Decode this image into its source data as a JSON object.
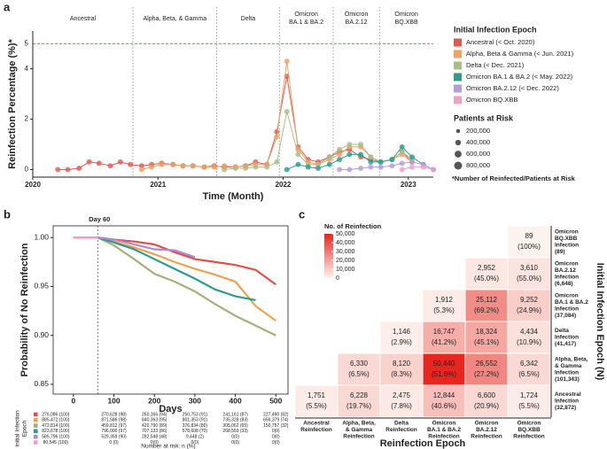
{
  "chart_data": [
    {
      "type": "bubble-line",
      "panel": "a",
      "ylabel": "Reinfection Percentage (%)*",
      "xlabel": "Time (Month)",
      "x": [
        2020.2,
        2020.28,
        2020.37,
        2020.45,
        2020.53,
        2020.62,
        2020.7,
        2020.78,
        2020.87,
        2020.95,
        2021.03,
        2021.12,
        2021.2,
        2021.28,
        2021.37,
        2021.45,
        2021.53,
        2021.62,
        2021.7,
        2021.78,
        2021.87,
        2021.95,
        2022.03,
        2022.12,
        2022.2,
        2022.28,
        2022.37,
        2022.45,
        2022.53,
        2022.62,
        2022.7,
        2022.78,
        2022.87,
        2022.95,
        2023.03,
        2023.12,
        2023.2
      ],
      "xlim": [
        2020,
        2023.2
      ],
      "xticks": [
        2020,
        2021,
        2022,
        2023
      ],
      "ylim": [
        -0.3,
        5.5
      ],
      "yticks": [
        0,
        2,
        4
      ],
      "hline": 5,
      "hline_color": "#e8251f",
      "epoch_boundaries": [
        2020.8,
        2021.47,
        2021.97,
        2022.4,
        2022.77
      ],
      "epoch_labels": [
        [
          "Ancestral"
        ],
        [
          "Alpha, Beta, & Gamma"
        ],
        [
          "Delta"
        ],
        [
          "Omicron",
          "BA.1 & BA.2"
        ],
        [
          "Omicron",
          "BA.2.12"
        ],
        [
          "Omicron",
          "BQ.XBB"
        ]
      ],
      "legend_title": "Initial Infection Epoch",
      "size_legend_title": "Patients at Risk",
      "size_legend": [
        {
          "value": 200000,
          "label": "200,000"
        },
        {
          "value": 400000,
          "label": "400,000"
        },
        {
          "value": 600000,
          "label": "600,000"
        },
        {
          "value": 800000,
          "label": "800,000"
        }
      ],
      "footnote": "*Number of Reinfected/Patients at Risk",
      "series": [
        {
          "name": "Ancestral (< Oct. 2020)",
          "color": "#e05a55",
          "values": [
            0,
            0,
            0.05,
            0.3,
            0.25,
            0.15,
            0.3,
            0.2,
            0.15,
            0.2,
            0.25,
            0.2,
            0.15,
            0.15,
            0.1,
            0.15,
            0.1,
            0.1,
            0.15,
            0.3,
            0.2,
            1.5,
            3.7,
            0.9,
            0.4,
            0.3,
            0.5,
            0.7,
            0.8,
            0.5,
            0.4,
            0.3,
            0.4,
            0.7,
            0.3,
            null,
            null
          ]
        },
        {
          "name": "Alpha, Beta & Gamma (< Jun. 2021)",
          "color": "#f0a060",
          "values": [
            null,
            null,
            null,
            null,
            null,
            null,
            null,
            null,
            0,
            0.1,
            0.2,
            0.2,
            0.15,
            0.15,
            0.1,
            0.1,
            0.15,
            0.1,
            0.15,
            0.2,
            0.2,
            1.3,
            4.3,
            0.8,
            0.3,
            0.2,
            0.4,
            0.6,
            0.9,
            0.9,
            0.5,
            0.3,
            0.4,
            0.6,
            0.3,
            null,
            null
          ]
        },
        {
          "name": "Delta (< Dec. 2021)",
          "color": "#a8bf8a",
          "values": [
            null,
            null,
            null,
            null,
            null,
            null,
            null,
            null,
            null,
            null,
            null,
            null,
            null,
            null,
            null,
            null,
            0,
            0.05,
            0.05,
            0.1,
            0.1,
            0.3,
            2.3,
            0.6,
            0.2,
            0.2,
            0.5,
            0.8,
            1.0,
            1.0,
            0.5,
            0.3,
            0.4,
            0.7,
            0.4,
            null,
            null
          ]
        },
        {
          "name": "Omicron BA.1 & BA.2 (< May. 2022)",
          "color": "#2a9d8f",
          "values": [
            null,
            null,
            null,
            null,
            null,
            null,
            null,
            null,
            null,
            null,
            null,
            null,
            null,
            null,
            null,
            null,
            null,
            null,
            null,
            null,
            null,
            null,
            0,
            0.2,
            0.1,
            0.05,
            0.2,
            0.4,
            0.6,
            0.6,
            0.3,
            0.3,
            0.4,
            0.9,
            0.5,
            0.2,
            0
          ]
        },
        {
          "name": "Omicron BA.2.12 (< Dec. 2022)",
          "color": "#b39ddb",
          "values": [
            null,
            null,
            null,
            null,
            null,
            null,
            null,
            null,
            null,
            null,
            null,
            null,
            null,
            null,
            null,
            null,
            null,
            null,
            null,
            null,
            null,
            null,
            null,
            null,
            null,
            null,
            null,
            0,
            0,
            0.05,
            0.1,
            0.1,
            0.15,
            0.25,
            0.3,
            0.2,
            0
          ]
        },
        {
          "name": "Omicron BQ.XBB",
          "color": "#eaa3c4",
          "values": [
            null,
            null,
            null,
            null,
            null,
            null,
            null,
            null,
            null,
            null,
            null,
            null,
            null,
            null,
            null,
            null,
            null,
            null,
            null,
            null,
            null,
            null,
            null,
            null,
            null,
            null,
            null,
            null,
            null,
            null,
            null,
            null,
            null,
            0,
            0.1,
            0.1,
            0
          ]
        }
      ]
    },
    {
      "type": "survival",
      "panel": "b",
      "annotation": "Day 60",
      "vline": 60,
      "ylabel": "Probability of No Reinfection",
      "xlabel": "Days",
      "x": [
        0,
        60,
        100,
        150,
        200,
        250,
        300,
        350,
        400,
        450,
        500
      ],
      "xlim": [
        -50,
        530
      ],
      "xticks": [
        0,
        100,
        200,
        300,
        400,
        500
      ],
      "ylim": [
        0.84,
        1.012
      ],
      "yticks": [
        {
          "value": 0.85,
          "label": "0.85"
        },
        {
          "value": 0.9,
          "label": "0.90"
        },
        {
          "value": 0.95,
          "label": "0.95"
        },
        {
          "value": 1,
          "label": "1.00"
        }
      ],
      "risk_title": "Number at risk: n (%)",
      "risk_ylabel": [
        "Initial Infection",
        "Epoch"
      ],
      "series": [
        {
          "color": "#e0504a",
          "values": [
            1,
            1,
            0.998,
            0.996,
            0.993,
            0.985,
            0.978,
            0.975,
            0.972,
            0.967,
            0.952
          ],
          "at_risk": [
            "276,086 (100)",
            "270,628 (98)",
            "260,166 (94)",
            "250,753 (91)",
            "241,161 (87)",
            "227,490 (82)"
          ]
        },
        {
          "color": "#f0a050",
          "values": [
            1,
            1,
            0.996,
            0.99,
            0.983,
            0.975,
            0.968,
            0.962,
            0.955,
            0.93,
            0.915
          ],
          "at_risk": [
            "885,472 (100)",
            "871,586 (98)",
            "840,363 (95)",
            "801,353 (91)",
            "735,328 (83)",
            "659,379 (74)"
          ]
        },
        {
          "color": "#a5b07a",
          "values": [
            1,
            1,
            0.992,
            0.978,
            0.963,
            0.955,
            0.945,
            0.932,
            0.92,
            0.91,
            0.9
          ],
          "at_risk": [
            "472,814 (100)",
            "459,812 (97)",
            "420,790 (89)",
            "376,834 (80)",
            "305,062 (65)",
            "150,757 (32)"
          ]
        },
        {
          "color": "#2a9d8f",
          "values": [
            1,
            1,
            0.995,
            0.988,
            0.978,
            0.968,
            0.958,
            0.947,
            0.94,
            0.936,
            null
          ],
          "at_risk": [
            "823,678 (100)",
            "796,000 (97)",
            "707,133 (86)",
            "578,608 (70)",
            "268,559 (33)",
            "0(0)"
          ]
        },
        {
          "color": "#a98bd0",
          "values": [
            1,
            1,
            0.998,
            0.993,
            0.988,
            0.987,
            0.98,
            null,
            null,
            null,
            null
          ],
          "at_risk": [
            "585,796 (100)",
            "529,359 (90)",
            "282,548 (48)",
            "9,448 (2)",
            "0(0)",
            "0(0)"
          ]
        },
        {
          "color": "#f0a0c0",
          "values": [
            1,
            1,
            null,
            null,
            null,
            null,
            null,
            null,
            null,
            null,
            null
          ],
          "at_risk": [
            "80,545 (100)",
            "0 (0)",
            "0(0)",
            "0(0)",
            "0(0)",
            "0(0)"
          ]
        }
      ]
    },
    {
      "type": "heatmap",
      "panel": "c",
      "xlabel": "Reinfection Epoch",
      "ylabel": "Initial Infection Epoch (N)",
      "colorbar_title": "No. of Reinfection",
      "clim": [
        0,
        50000
      ],
      "cticks": [
        0,
        {
          "value": 10000,
          "label": "10,000"
        },
        {
          "value": 20000,
          "label": "20,000"
        },
        {
          "value": 30000,
          "label": "30,000"
        },
        {
          "value": 40000,
          "label": "40,000"
        },
        {
          "value": 50000,
          "label": "50,000"
        }
      ],
      "color_low": "#fdf3ee",
      "color_high": "#e8251f",
      "x_categories": [
        [
          "Ancestral",
          "Reinfection"
        ],
        [
          "Alpha, Beta,",
          "& Gamma",
          "Reinfection"
        ],
        [
          "Delta",
          "Reinfection"
        ],
        [
          "Omicron",
          "BA.1 & BA.2",
          "Reinfection"
        ],
        [
          "Omicron",
          "BA.2.12",
          "Reinfection"
        ],
        [
          "Omicron",
          "BQ.XBB",
          "Reinfection"
        ]
      ],
      "y_categories": [
        [
          "Omicron",
          "BQ.XBB",
          "Infection",
          "(89)"
        ],
        [
          "Omicron",
          "BA.2.12",
          "Infection",
          "(6,648)"
        ],
        [
          "Omicron",
          "BA.1 & BA.2",
          "Infection",
          "(37,084)"
        ],
        [
          "Delta",
          "Infection",
          "(41,417)"
        ],
        [
          "Alpha, Beta,",
          "& Gamma",
          "Infection",
          "(101,343)"
        ],
        [
          "Ancestral",
          "Infection",
          "(32,872)"
        ]
      ],
      "values": [
        [
          null,
          null,
          null,
          null,
          null,
          89
        ],
        [
          null,
          null,
          null,
          null,
          2952,
          3610
        ],
        [
          null,
          null,
          null,
          1912,
          25112,
          9252
        ],
        [
          null,
          null,
          1146,
          16747,
          18324,
          4434
        ],
        [
          null,
          6330,
          8120,
          50440,
          26552,
          6342
        ],
        [
          1751,
          6228,
          2475,
          12844,
          6600,
          1724
        ]
      ],
      "value_labels": [
        [
          null,
          null,
          null,
          null,
          null,
          "89"
        ],
        [
          null,
          null,
          null,
          null,
          "2,952",
          "3,610"
        ],
        [
          null,
          null,
          null,
          "1,912",
          "25,112",
          "9,252"
        ],
        [
          null,
          null,
          "1,146",
          "16,747",
          "18,324",
          "4,434"
        ],
        [
          null,
          "6,330",
          "8,120",
          "50,440",
          "26,552",
          "6,342"
        ],
        [
          "1,751",
          "6,228",
          "2,475",
          "12,844",
          "6,600",
          "1,724"
        ]
      ],
      "percents": [
        [
          null,
          null,
          null,
          null,
          null,
          100
        ],
        [
          null,
          null,
          null,
          null,
          45.0,
          55.0
        ],
        [
          null,
          null,
          null,
          5.3,
          69.2,
          24.9
        ],
        [
          null,
          null,
          2.9,
          41.2,
          45.1,
          10.9
        ],
        [
          null,
          6.5,
          8.3,
          51.6,
          27.2,
          6.5
        ],
        [
          5.5,
          19.7,
          7.8,
          40.6,
          20.9,
          5.5
        ]
      ],
      "percent_labels": [
        [
          null,
          null,
          null,
          null,
          null,
          "(100%)"
        ],
        [
          null,
          null,
          null,
          null,
          "(45.0%)",
          "(55.0%)"
        ],
        [
          null,
          null,
          null,
          "(5.3%)",
          "(69.2%)",
          "(24.9%)"
        ],
        [
          null,
          null,
          "(2.9%)",
          "(41.2%)",
          "(45.1%)",
          "(10.9%)"
        ],
        [
          null,
          "(6.5%)",
          "(8.3%)",
          "(51.6%)",
          "(27.2%)",
          "(6.5%)"
        ],
        [
          "(5.5%)",
          "(19.7%)",
          "(7.8%)",
          "(40.6%)",
          "(20.9%)",
          "(5.5%)"
        ]
      ]
    }
  ]
}
